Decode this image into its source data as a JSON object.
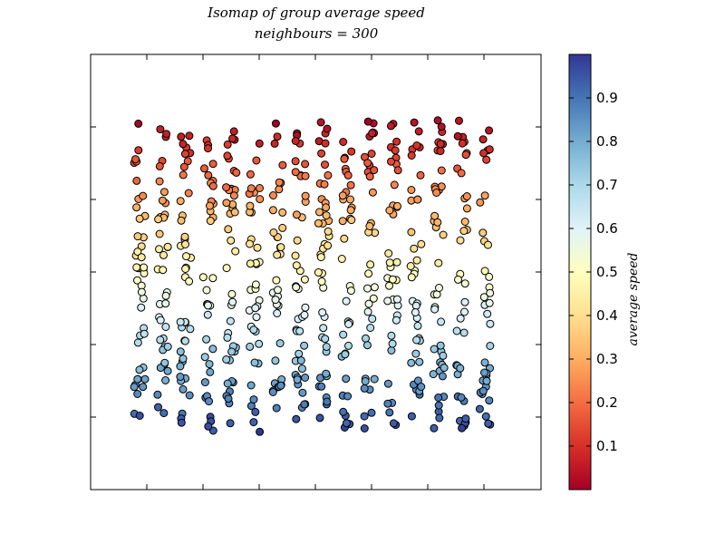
{
  "chart_data": {
    "type": "scatter",
    "title": "Isomap of group average speed",
    "subtitle": "neighbours = 300",
    "xlabel": "",
    "ylabel": "",
    "x_ticks_shown": true,
    "x_tick_labels": [],
    "y_tick_labels": [],
    "grid": false,
    "colorbar": {
      "label": "average speed",
      "colormap": "RdYlBu",
      "range": [
        0.0,
        1.0
      ],
      "ticks": [
        "0.1",
        "0.2",
        "0.3",
        "0.4",
        "0.5",
        "0.6",
        "0.7",
        "0.8",
        "0.9"
      ],
      "tick_values": [
        0.1,
        0.2,
        0.3,
        0.4,
        0.5,
        0.6,
        0.7,
        0.8,
        0.9
      ]
    },
    "columns": 16,
    "column_x": [
      0,
      1,
      2,
      3,
      4,
      5,
      6,
      7,
      8,
      9,
      10,
      11,
      12,
      13,
      14,
      15
    ],
    "y_range": [
      0,
      1
    ],
    "note_values": "points are arranged in 16 jittered vertical columns; colour encodes average speed, decreasing from ~0.95 at the bottom to ~0.05 at the top",
    "marker_edge": "#000000",
    "colors": {
      "low": "#a50026",
      "mid": "#ffffbf",
      "high": "#313695"
    }
  }
}
